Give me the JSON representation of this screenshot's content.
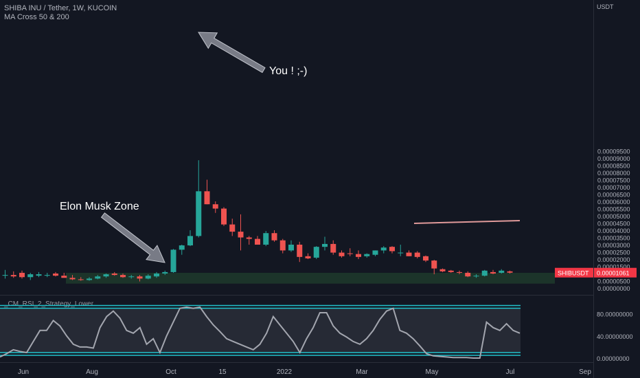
{
  "header": {
    "symbol_line": "SHIBA INU / Tether, 1W, KUCOIN",
    "indicator": "MA Cross 50 & 200"
  },
  "colors": {
    "background": "#131722",
    "up": "#26a69a",
    "down": "#ef5350",
    "rsi_line": "#a3a6af",
    "rsi_bands": "#22c3cc",
    "zone": "#1e3a2c",
    "ma_line": "#e09a9a",
    "price_tag": "#f23645"
  },
  "annotations": [
    {
      "text": "You ! ;-)"
    },
    {
      "text": "Elon Musk Zone"
    }
  ],
  "price_tag": {
    "symbol": "SHIBUSDT",
    "price": "0.00001061"
  },
  "chart_data": [
    {
      "type": "candlestick",
      "currency_label": "USDT",
      "y_ticks": [
        "0.00000000",
        "0.00000500",
        "0.00001000",
        "0.00001500",
        "0.00002000",
        "0.00002500",
        "0.00003000",
        "0.00003500",
        "0.00004000",
        "0.00004500",
        "0.00005000",
        "0.00005500",
        "0.00006000",
        "0.00006500",
        "0.00007000",
        "0.00007500",
        "0.00008000",
        "0.00008500",
        "0.00009000",
        "0.00009500"
      ],
      "x_ticks": [
        "Jun",
        "Aug",
        "Oct",
        "15",
        "2022",
        "Mar",
        "May",
        "Jul",
        "Sep"
      ],
      "candles": [
        {
          "o": 0.85,
          "h": 1.25,
          "l": 0.65,
          "c": 0.9
        },
        {
          "o": 0.9,
          "h": 1.15,
          "l": 0.7,
          "c": 0.8
        },
        {
          "o": 1.05,
          "h": 1.2,
          "l": 0.65,
          "c": 0.75
        },
        {
          "o": 0.75,
          "h": 1.05,
          "l": 0.55,
          "c": 0.95
        },
        {
          "o": 0.85,
          "h": 1.1,
          "l": 0.75,
          "c": 0.95
        },
        {
          "o": 0.85,
          "h": 1.05,
          "l": 0.75,
          "c": 0.9
        },
        {
          "o": 1.0,
          "h": 1.1,
          "l": 0.8,
          "c": 0.85
        },
        {
          "o": 0.85,
          "h": 1.05,
          "l": 0.75,
          "c": 0.7
        },
        {
          "o": 0.7,
          "h": 0.9,
          "l": 0.55,
          "c": 0.6
        },
        {
          "o": 0.6,
          "h": 0.75,
          "l": 0.5,
          "c": 0.55
        },
        {
          "o": 0.55,
          "h": 0.75,
          "l": 0.5,
          "c": 0.65
        },
        {
          "o": 0.65,
          "h": 0.9,
          "l": 0.6,
          "c": 0.8
        },
        {
          "o": 0.8,
          "h": 1.0,
          "l": 0.7,
          "c": 0.95
        },
        {
          "o": 1.0,
          "h": 1.1,
          "l": 0.85,
          "c": 0.9
        },
        {
          "o": 0.9,
          "h": 1.0,
          "l": 0.7,
          "c": 0.75
        },
        {
          "o": 0.75,
          "h": 0.9,
          "l": 0.65,
          "c": 0.8
        },
        {
          "o": 0.8,
          "h": 0.9,
          "l": 0.45,
          "c": 0.65
        },
        {
          "o": 0.65,
          "h": 0.95,
          "l": 0.6,
          "c": 0.85
        },
        {
          "o": 0.8,
          "h": 1.1,
          "l": 0.7,
          "c": 1.0
        },
        {
          "o": 1.0,
          "h": 1.2,
          "l": 0.9,
          "c": 1.1
        },
        {
          "o": 1.1,
          "h": 2.7,
          "l": 1.05,
          "c": 2.65
        },
        {
          "o": 2.65,
          "h": 3.0,
          "l": 2.3,
          "c": 2.95
        },
        {
          "o": 2.95,
          "h": 4.0,
          "l": 2.9,
          "c": 3.6
        },
        {
          "o": 3.6,
          "h": 8.85,
          "l": 3.5,
          "c": 6.7
        },
        {
          "o": 6.7,
          "h": 7.5,
          "l": 5.8,
          "c": 5.8
        },
        {
          "o": 5.8,
          "h": 6.0,
          "l": 5.2,
          "c": 5.5
        },
        {
          "o": 5.5,
          "h": 5.6,
          "l": 4.3,
          "c": 4.4
        },
        {
          "o": 4.4,
          "h": 4.8,
          "l": 3.6,
          "c": 3.9
        },
        {
          "o": 3.9,
          "h": 5.1,
          "l": 2.6,
          "c": 3.5
        },
        {
          "o": 3.5,
          "h": 3.6,
          "l": 3.0,
          "c": 3.4
        },
        {
          "o": 3.4,
          "h": 3.6,
          "l": 3.0,
          "c": 3.0
        },
        {
          "o": 3.0,
          "h": 3.95,
          "l": 2.9,
          "c": 3.8
        },
        {
          "o": 3.8,
          "h": 4.0,
          "l": 3.2,
          "c": 3.3
        },
        {
          "o": 3.3,
          "h": 3.4,
          "l": 2.4,
          "c": 2.6
        },
        {
          "o": 2.6,
          "h": 3.3,
          "l": 2.5,
          "c": 3.0
        },
        {
          "o": 3.0,
          "h": 3.2,
          "l": 1.8,
          "c": 2.15
        },
        {
          "o": 2.2,
          "h": 2.4,
          "l": 2.0,
          "c": 2.05
        },
        {
          "o": 2.1,
          "h": 2.9,
          "l": 2.0,
          "c": 2.85
        },
        {
          "o": 2.85,
          "h": 3.55,
          "l": 2.6,
          "c": 3.05
        },
        {
          "o": 3.05,
          "h": 3.3,
          "l": 2.3,
          "c": 2.45
        },
        {
          "o": 2.45,
          "h": 2.6,
          "l": 2.1,
          "c": 2.2
        },
        {
          "o": 2.4,
          "h": 2.75,
          "l": 2.2,
          "c": 2.35
        },
        {
          "o": 2.35,
          "h": 2.6,
          "l": 2.0,
          "c": 2.15
        },
        {
          "o": 2.2,
          "h": 2.4,
          "l": 2.1,
          "c": 2.35
        },
        {
          "o": 2.3,
          "h": 2.6,
          "l": 2.2,
          "c": 2.6
        },
        {
          "o": 2.6,
          "h": 2.9,
          "l": 2.4,
          "c": 2.8
        },
        {
          "o": 2.85,
          "h": 2.9,
          "l": 2.4,
          "c": 2.55
        },
        {
          "o": 2.45,
          "h": 3.0,
          "l": 2.2,
          "c": 2.45
        },
        {
          "o": 2.45,
          "h": 2.6,
          "l": 2.2,
          "c": 2.2
        },
        {
          "o": 2.45,
          "h": 2.55,
          "l": 2.05,
          "c": 2.15
        },
        {
          "o": 2.2,
          "h": 2.25,
          "l": 1.8,
          "c": 1.9
        },
        {
          "o": 1.9,
          "h": 1.95,
          "l": 0.95,
          "c": 1.35
        },
        {
          "o": 1.3,
          "h": 1.35,
          "l": 1.1,
          "c": 1.15
        },
        {
          "o": 1.2,
          "h": 1.25,
          "l": 1.05,
          "c": 1.1
        },
        {
          "o": 1.1,
          "h": 1.2,
          "l": 0.95,
          "c": 1.05
        },
        {
          "o": 1.05,
          "h": 1.15,
          "l": 0.75,
          "c": 0.8
        },
        {
          "o": 0.8,
          "h": 0.95,
          "l": 0.7,
          "c": 0.85
        },
        {
          "o": 0.85,
          "h": 1.25,
          "l": 0.8,
          "c": 1.2
        },
        {
          "o": 1.1,
          "h": 1.25,
          "l": 0.95,
          "c": 1.0
        },
        {
          "o": 1.05,
          "h": 1.3,
          "l": 1.0,
          "c": 1.2
        },
        {
          "o": 1.15,
          "h": 1.2,
          "l": 1.0,
          "c": 1.06
        }
      ],
      "scale_note": "candle prices in units of 0.00001 USDT"
    },
    {
      "type": "line",
      "title": "_CM_RSI_2_Strategy_Lower",
      "y_ticks": [
        "0.00000000",
        "40.00000000",
        "80.00000000"
      ],
      "bands": [
        95,
        90,
        10,
        5
      ],
      "series": [
        {
          "values": [
            2,
            8,
            15,
            12,
            10,
            30,
            50,
            50,
            68,
            58,
            40,
            25,
            20,
            20,
            18,
            55,
            75,
            85,
            72,
            50,
            45,
            55,
            25,
            35,
            10,
            40,
            65,
            90,
            92,
            90,
            92,
            75,
            60,
            48,
            35,
            30,
            25,
            20,
            15,
            25,
            45,
            75,
            60,
            45,
            30,
            10,
            35,
            55,
            82,
            82,
            58,
            45,
            38,
            30,
            25,
            35,
            50,
            70,
            85,
            90,
            50,
            45,
            35,
            22,
            8,
            4,
            3,
            2,
            1,
            1,
            1,
            0,
            0,
            65,
            55,
            50,
            62,
            50,
            45
          ]
        }
      ]
    }
  ]
}
